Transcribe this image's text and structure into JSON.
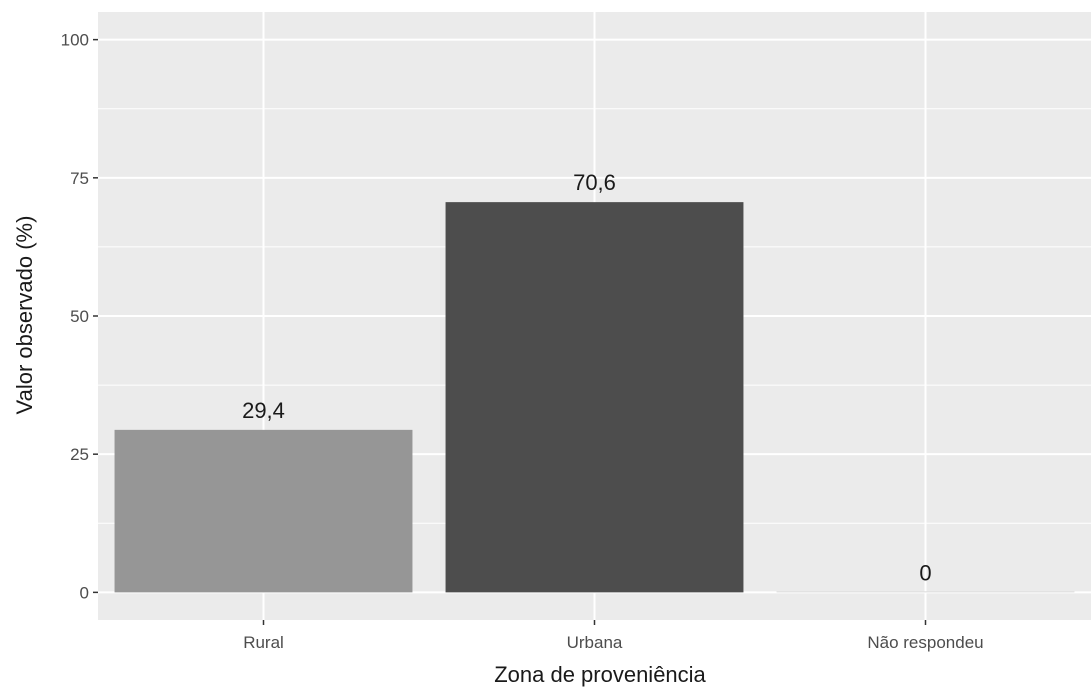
{
  "chart_data": {
    "type": "bar",
    "title": "",
    "xlabel": "Zona de proveniência",
    "ylabel": "Valor observado (%)",
    "ylim": [
      -5,
      105
    ],
    "yticks": [
      0,
      25,
      50,
      75,
      100
    ],
    "ytick_labels": [
      "0",
      "25",
      "50",
      "75",
      "100"
    ],
    "categories": [
      "Rural",
      "Urbana",
      "Não respondeu"
    ],
    "values": [
      29.4,
      70.6,
      0
    ],
    "data_labels": [
      "29,4",
      "70,6",
      "0"
    ],
    "bar_colors": [
      "#969696",
      "#4d4d4d",
      "#d9d9d9"
    ],
    "panel_background": "#ebebeb",
    "grid_color": "#ffffff",
    "grid": true,
    "legend": "none"
  }
}
